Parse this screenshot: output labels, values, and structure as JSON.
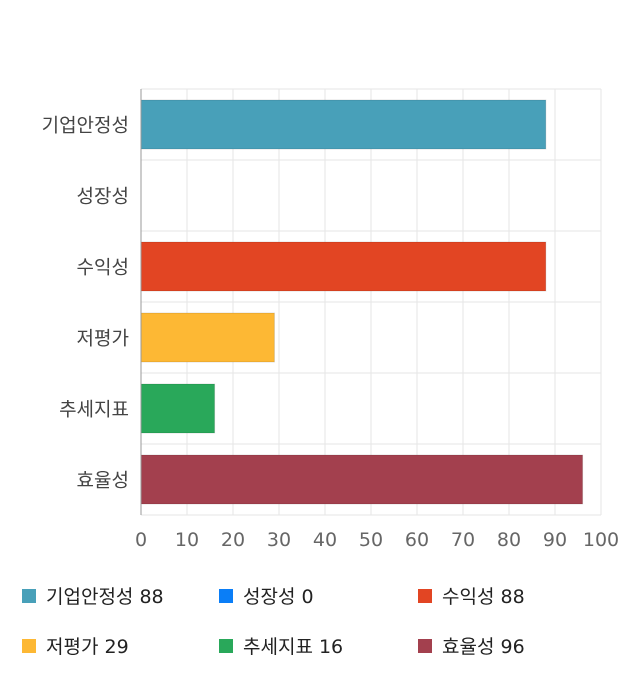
{
  "chart_data": {
    "type": "bar",
    "orientation": "horizontal",
    "categories": [
      "기업안정성",
      "성장성",
      "수익성",
      "저평가",
      "추세지표",
      "효율성"
    ],
    "values": [
      88,
      0,
      88,
      29,
      16,
      96
    ],
    "colors": [
      "#48a0b9",
      "#0a7ef7",
      "#e24523",
      "#fdb834",
      "#29a85a",
      "#a3404e"
    ],
    "xlim": [
      0,
      100
    ],
    "xticks": [
      0,
      10,
      20,
      30,
      40,
      50,
      60,
      70,
      80,
      90,
      100
    ],
    "grid": true,
    "legend_position": "bottom"
  },
  "legend": {
    "items": [
      {
        "label": "기업안정성 88",
        "color": "#48a0b9"
      },
      {
        "label": "성장성 0",
        "color": "#0a7ef7"
      },
      {
        "label": "수익성 88",
        "color": "#e24523"
      },
      {
        "label": "저평가 29",
        "color": "#fdb834"
      },
      {
        "label": "추세지표 16",
        "color": "#29a85a"
      },
      {
        "label": "효율성 96",
        "color": "#a3404e"
      }
    ]
  }
}
